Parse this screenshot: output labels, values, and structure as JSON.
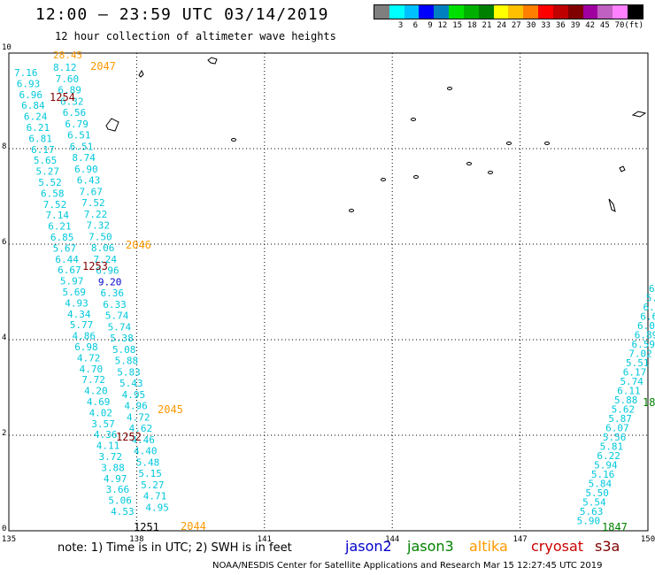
{
  "title": "12:00 – 23:59 UTC 03/14/2019",
  "subtitle": "12 hour collection of altimeter wave heights",
  "legend": {
    "unit": "(ft)",
    "colors": [
      "#7f7f7f",
      "#00ffff",
      "#00c0ff",
      "#0000ff",
      "#0080c0",
      "#00e000",
      "#00b000",
      "#008000",
      "#ffff00",
      "#ffc000",
      "#ff8000",
      "#ff0000",
      "#c00000",
      "#800000",
      "#a000a0",
      "#c060c0",
      "#ff80ff",
      "#000000"
    ],
    "labels": [
      "3",
      "6",
      "9",
      "12",
      "15",
      "18",
      "21",
      "24",
      "27",
      "30",
      "33",
      "36",
      "39",
      "42",
      "45",
      "70",
      "(ft)"
    ]
  },
  "colors": {
    "jason2": "#0000cc",
    "jason3": "#008000",
    "altika": "#ff9900",
    "cryosat": "#cc0000",
    "s3a": "#800000",
    "swh": "#00c8dc",
    "grid": "#000000"
  },
  "axes": {
    "lon_ticks": [
      "135",
      "138",
      "141",
      "144",
      "147",
      "150"
    ],
    "lat_ticks": [
      "0",
      "2",
      "4",
      "6",
      "8",
      "10"
    ]
  },
  "note": "note:  1) Time is in UTC;  2) SWH is in feet",
  "satellites": {
    "jason2": "jason2",
    "jason3": "jason3",
    "altika": "altika",
    "cryosat": "cryosat",
    "s3a": "s3a"
  },
  "footer": "NOAA/NESDIS Center for Satellite Applications and Research    Mar 15 12:27:45 UTC 2019",
  "tracks": [
    {
      "labels": [
        "7.16",
        "6.93",
        "6.96",
        "6.84",
        "6.24",
        "6.21",
        "6.81",
        "6.17",
        "5.65",
        "5.27",
        "5.52",
        "6.58",
        "7.52",
        "7.14",
        "6.21",
        "6.85",
        "5.67",
        "6.44",
        "6.67",
        "5.97",
        "5.69",
        "4.93",
        "4.34",
        "5.77",
        "4.86",
        "6.98",
        "4.72",
        "4.70",
        "7.72",
        "4.20",
        "4.69",
        "4.02",
        "3.57",
        "4.36",
        "4.11",
        "3.72",
        "3.88",
        "4.97",
        "3.66",
        "5.06",
        "4.53"
      ]
    },
    {
      "labels": [
        "8.12",
        "7.60",
        "6.89",
        "6.32",
        "6.56",
        "6.79",
        "6.51",
        "6.51",
        "8.74",
        "6.90",
        "6.43",
        "7.67",
        "7.52",
        "7.22",
        "7.32",
        "7.50",
        "8.06",
        "7.24",
        "6.96",
        "9.20",
        "6.36",
        "6.33",
        "5.74",
        "5.74",
        "5.38",
        "5.08",
        "5.88",
        "5.83",
        "5.43",
        "4.95",
        "4.96",
        "4.72",
        "4.62",
        "4.46",
        "4.40",
        "5.48",
        "5.15",
        "5.27",
        "4.71",
        "4.95"
      ]
    },
    {
      "labels": [
        "6",
        "5.",
        "6.2",
        "6.6",
        "6.09",
        "6.89",
        "6.59",
        "7.02",
        "5.51",
        "6.17",
        "5.74",
        "6.11",
        "5.88",
        "5.62",
        "5.87",
        "6.07",
        "5.56",
        "5.81",
        "6.22",
        "5.94",
        "5.16",
        "5.84",
        "5.50",
        "5.54",
        "5.63",
        "5.90"
      ]
    }
  ],
  "track_markers": {
    "altika": [
      "28.45",
      "2047",
      "2046",
      "2045",
      "2044"
    ],
    "s3a": [
      "1254",
      "1253",
      "1252",
      "1251"
    ],
    "jason3": [
      "1847",
      "18"
    ],
    "jason2_value": "9.20"
  }
}
